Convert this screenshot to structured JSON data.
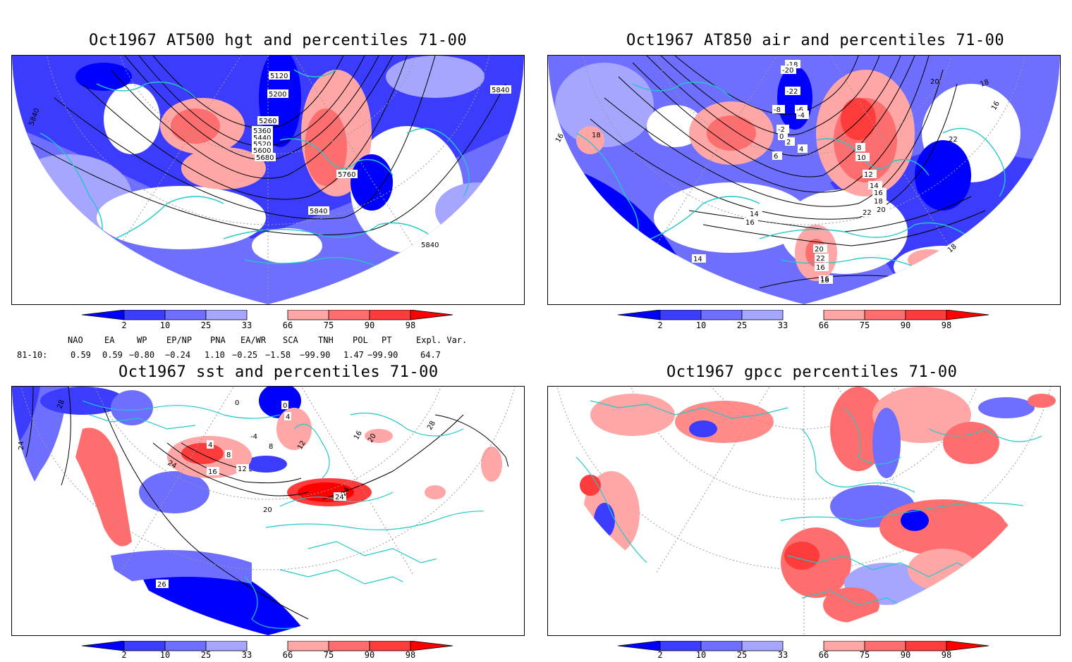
{
  "panels": {
    "p1": {
      "title": "Oct1967 AT500 hgt and percentiles 71-00",
      "labels": [
        "5120",
        "5200",
        "5260",
        "5360",
        "5440",
        "5520",
        "5600",
        "5680",
        "5760",
        "5840",
        "5840",
        "5840",
        "5840"
      ]
    },
    "p2": {
      "title": "Oct1967 AT850 air and percentiles 71-00",
      "labels": [
        "-18",
        "-20",
        "-22",
        "-8",
        "-6",
        "-4",
        "-2",
        "0",
        "2",
        "4",
        "6",
        "8",
        "10",
        "12",
        "14",
        "16",
        "18",
        "20",
        "22",
        "14",
        "16",
        "14",
        "16",
        "18",
        "20",
        "22",
        "16",
        "18",
        "18",
        "16",
        "22",
        "20",
        "18",
        "16"
      ]
    },
    "p3": {
      "title": "Oct1967 sst and percentiles 71-00",
      "labels": [
        "28",
        "24",
        "0",
        "0",
        "4",
        "-4",
        "8",
        "4",
        "8",
        "12",
        "12",
        "16",
        "24",
        "20",
        "24",
        "24",
        "16",
        "20",
        "28",
        "26"
      ]
    },
    "p4": {
      "title": "Oct1967 gpcc percentiles 71-00",
      "labels": []
    }
  },
  "colorbar": {
    "ticks": [
      "2",
      "10",
      "25",
      "33",
      "66",
      "75",
      "90",
      "98"
    ],
    "colors": [
      "#0000ff",
      "#3c3cff",
      "#6e6eff",
      "#a6a6ff",
      "#ffffff",
      "#ffa6a6",
      "#ff6e6e",
      "#ff3c3c",
      "#ff0000"
    ]
  },
  "indices": {
    "headers": [
      "NAO",
      "EA",
      "WP",
      "EP/NP",
      "PNA",
      "EA/WR",
      "SCA",
      "TNH",
      "POL",
      "PT",
      "Expl. Var."
    ],
    "row_label": "81-10:",
    "values": [
      "0.59",
      "0.59",
      "−0.80",
      "−0.24",
      "1.10",
      "−0.25",
      "−1.58",
      "−99.90",
      "1.47",
      "−99.90",
      "64.7"
    ]
  },
  "colors": {
    "coast": "#22c8c8",
    "contour": "#000000",
    "blue": "#1f1fff",
    "red": "#ff4040"
  }
}
